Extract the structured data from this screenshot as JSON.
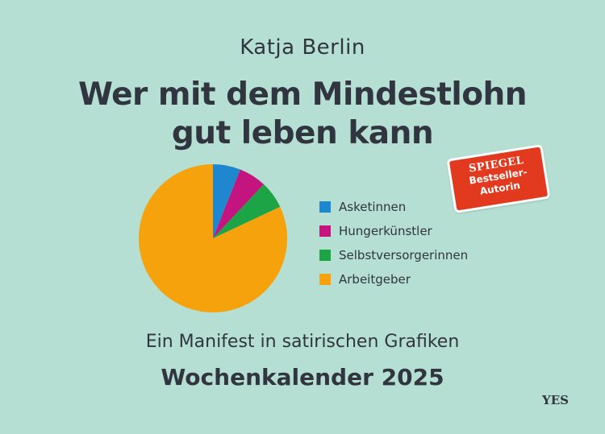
{
  "author": "Katja Berlin",
  "title_lines": [
    "Wer mit dem Mindestlohn",
    "gut leben kann"
  ],
  "badge": {
    "brand": "SPIEGEL",
    "lines": [
      "Bestseller-",
      "Autorin"
    ],
    "color": "#e23a1e"
  },
  "subtitle": "Ein Manifest in satirischen Grafiken",
  "calendar": "Wochenkalender 2025",
  "publisher": "YES",
  "colors": {
    "background": "#b5dfd2",
    "text": "#30353f"
  },
  "chart_data": {
    "type": "pie",
    "title": "",
    "legend_position": "right",
    "slices": [
      {
        "name": "Asketinnen",
        "value": 6,
        "color": "#1f87cf"
      },
      {
        "name": "Hungerkünstler",
        "value": 6,
        "color": "#c4147f"
      },
      {
        "name": "Selbstversorgerinnen",
        "value": 6,
        "color": "#1da446"
      },
      {
        "name": "Arbeitgeber",
        "value": 82,
        "color": "#f6a20d"
      }
    ]
  }
}
